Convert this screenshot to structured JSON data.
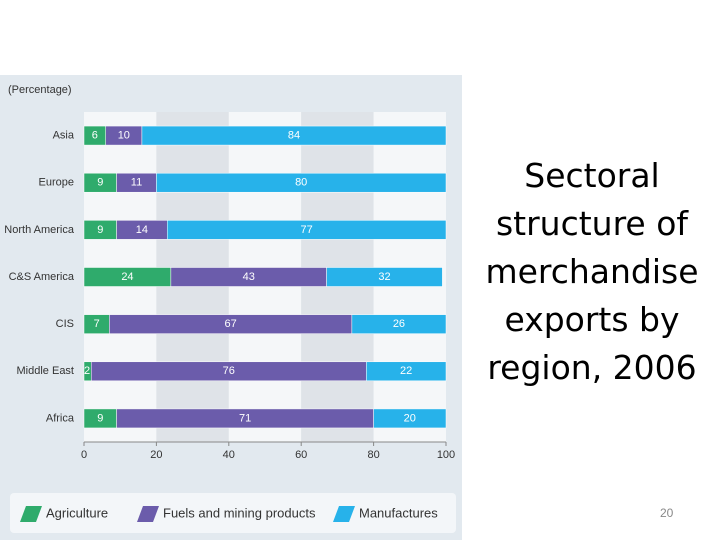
{
  "slide": {
    "title": "Sectoral structure of merchandise exports by region, 2006",
    "page_number": "20"
  },
  "chart_data": {
    "type": "bar",
    "orientation": "horizontal",
    "stacked": true,
    "y_label": "(Percentage)",
    "categories": [
      "Asia",
      "Europe",
      "North America",
      "C&S America",
      "CIS",
      "Middle East",
      "Africa"
    ],
    "series": [
      {
        "name": "Agriculture",
        "color": "#2fab6c",
        "values": [
          6,
          9,
          9,
          24,
          7,
          2,
          9
        ]
      },
      {
        "name": "Fuels and mining products",
        "color": "#6b5cab",
        "values": [
          10,
          11,
          14,
          43,
          67,
          76,
          71
        ]
      },
      {
        "name": "Manufactures",
        "color": "#27b2ea",
        "values": [
          84,
          80,
          77,
          32,
          26,
          22,
          20
        ]
      }
    ],
    "xlim": [
      0,
      100
    ],
    "xticks": [
      0,
      20,
      40,
      60,
      80,
      100
    ],
    "grid": true,
    "legend": "bottom"
  }
}
